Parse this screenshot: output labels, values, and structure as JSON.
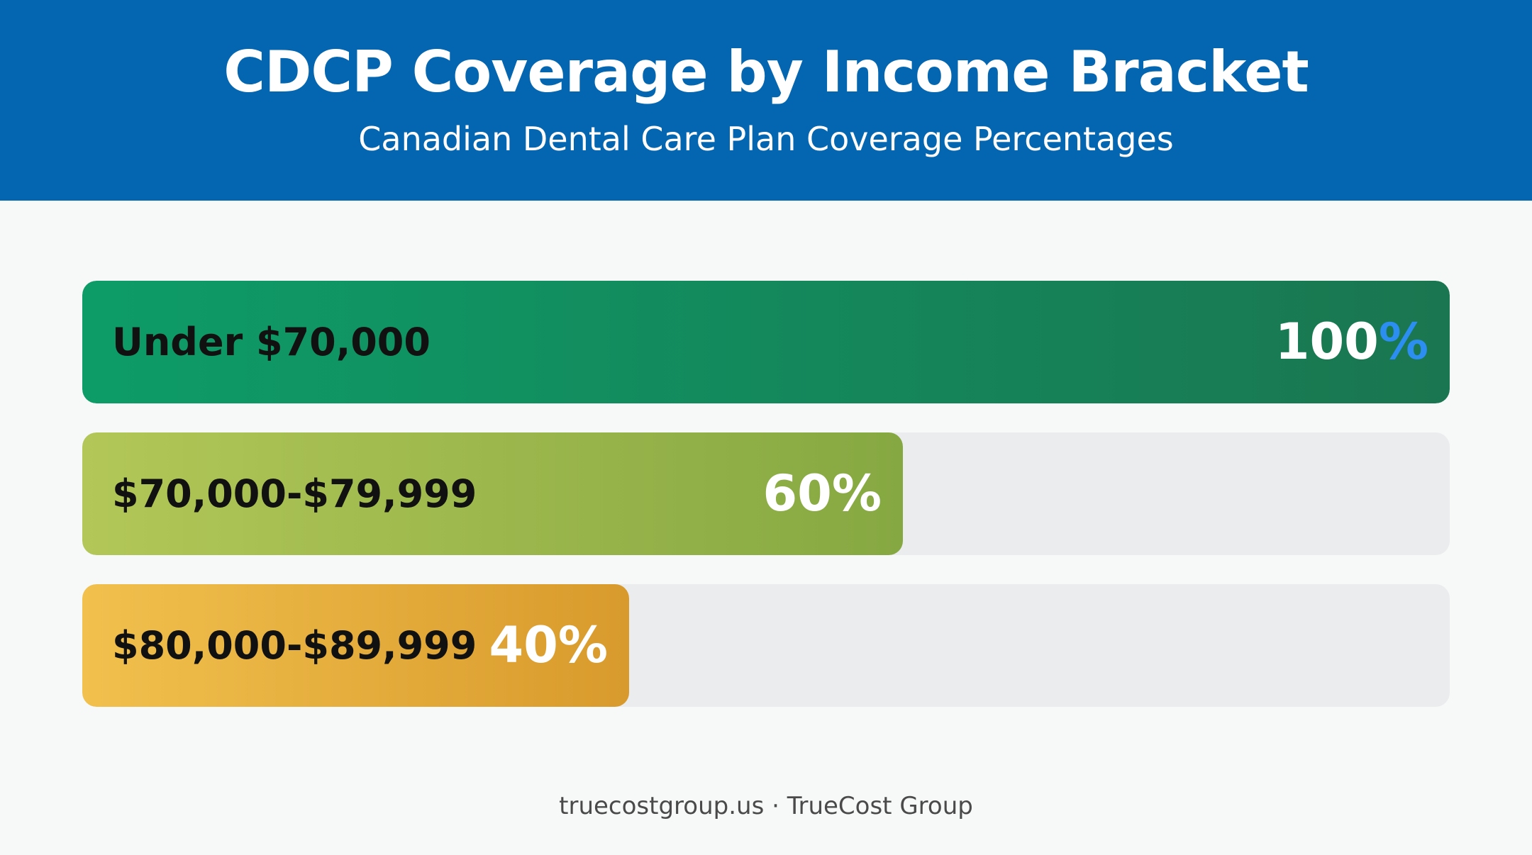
{
  "header": {
    "title": "CDCP Coverage by Income Bracket",
    "subtitle": "Canadian Dental Care Plan Coverage Percentages"
  },
  "chart_data": {
    "type": "bar",
    "orientation": "horizontal",
    "title": "CDCP Coverage by Income Bracket",
    "subtitle": "Canadian Dental Care Plan Coverage Percentages",
    "categories": [
      "Under $70,000",
      "$70,000-$79,999",
      "$80,000-$89,999"
    ],
    "values": [
      100,
      60,
      40
    ],
    "value_labels": [
      "100",
      "60",
      "40"
    ],
    "unit_suffix": "%",
    "xlim": [
      0,
      100
    ],
    "grid": false,
    "colors": {
      "bars": [
        [
          "#0d9c68",
          "#1a7650"
        ],
        [
          "#b2c757",
          "#86a842"
        ],
        [
          "#f1c04d",
          "#d89a2c"
        ]
      ],
      "track": "#ebecee",
      "percent_accent": "#2b8ef0"
    }
  },
  "footer": {
    "text": "truecostgroup.us · TrueCost Group"
  }
}
